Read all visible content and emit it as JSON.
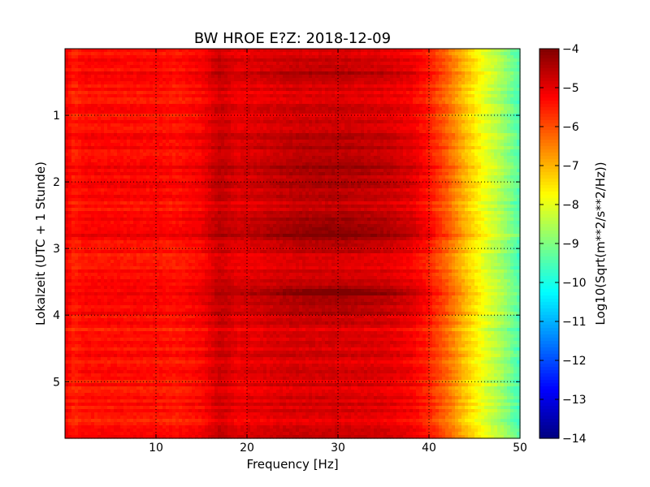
{
  "chart_data": {
    "type": "heatmap",
    "title": "BW HROE E?Z: 2018-12-09",
    "xlabel": "Frequency [Hz]",
    "ylabel": "Lokalzeit (UTC + 1 Stunde)",
    "xlim": [
      0,
      50
    ],
    "ylim": [
      5.85,
      0.0
    ],
    "y_inverted": true,
    "x_ticks": [
      10,
      20,
      30,
      40,
      50
    ],
    "y_ticks": [
      1,
      2,
      3,
      4,
      5
    ],
    "grid": true,
    "colormap": "jet",
    "colorbar": {
      "label": "Log10(Sqrt(m**2/s**2/Hz))",
      "range": [
        -14,
        -4
      ],
      "ticks": [
        -4,
        -5,
        -6,
        -7,
        -8,
        -9,
        -10,
        -11,
        -12,
        -13,
        -14
      ]
    },
    "spectrum_profile": {
      "freq_hz": [
        0,
        1,
        2,
        5,
        10,
        12,
        15,
        17,
        19,
        22,
        25,
        30,
        35,
        38,
        40,
        42,
        44,
        46,
        48,
        50
      ],
      "value": [
        -5.2,
        -5.6,
        -5.4,
        -5.4,
        -5.4,
        -5.5,
        -5.3,
        -4.8,
        -5.1,
        -5.0,
        -4.9,
        -4.9,
        -5.0,
        -5.2,
        -5.6,
        -6.3,
        -7.2,
        -8.0,
        -8.7,
        -9.6
      ]
    },
    "time_features": [
      {
        "time_h": 0.35,
        "width_h": 0.08,
        "offset": 0.3
      },
      {
        "time_h": 1.75,
        "width_h": 0.55,
        "offset": 0.35
      },
      {
        "time_h": 2.75,
        "width_h": 0.3,
        "offset": 0.55
      },
      {
        "time_h": 3.65,
        "width_h": 0.05,
        "offset": 0.7
      },
      {
        "time_h": 3.8,
        "width_h": 0.25,
        "offset": 0.35
      }
    ]
  }
}
